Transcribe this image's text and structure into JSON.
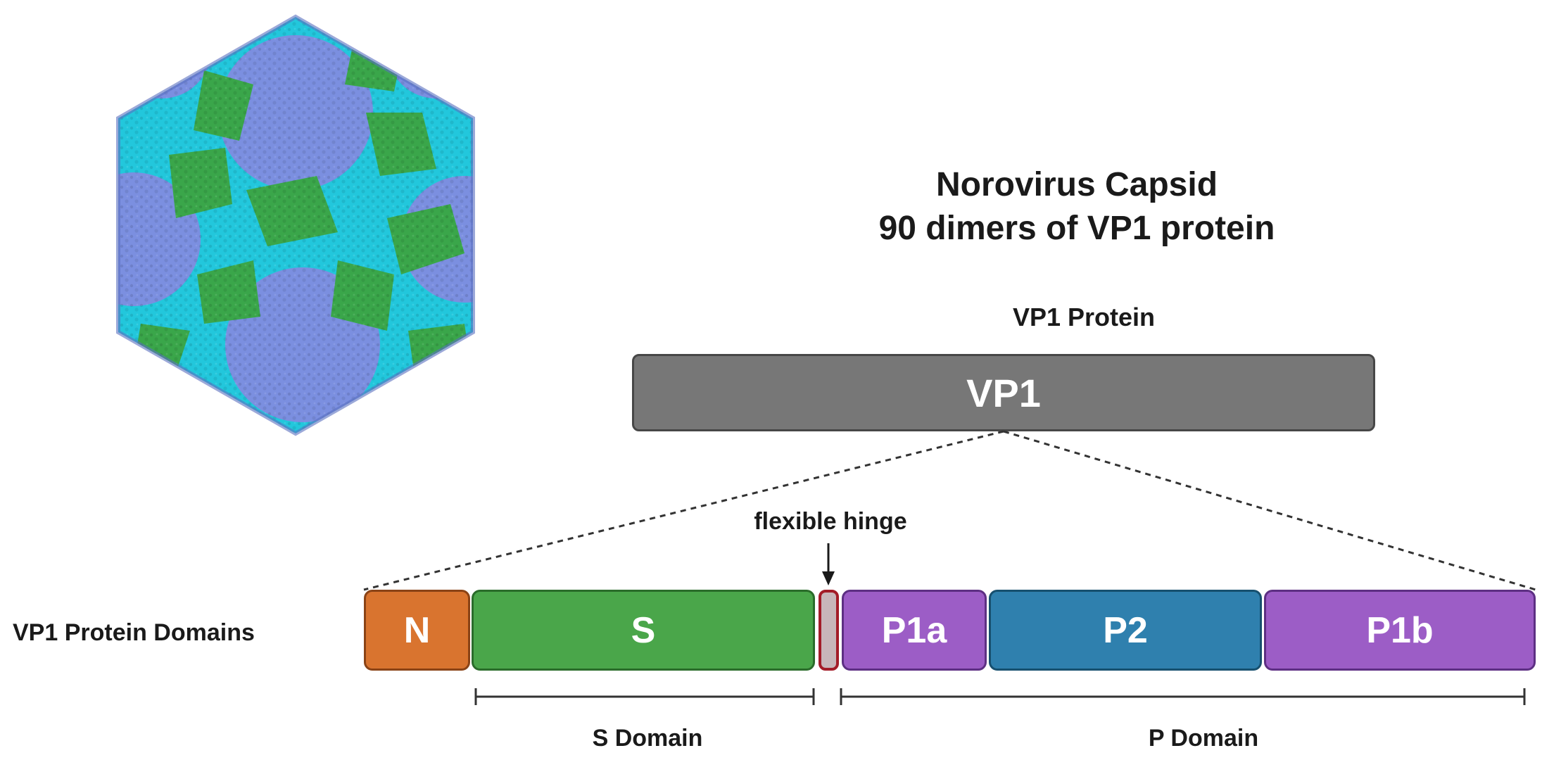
{
  "title": {
    "line1": "Norovirus Capsid",
    "line2": "90 dimers of VP1 protein"
  },
  "vp1_protein": {
    "caption": "VP1 Protein",
    "bar_label": "VP1"
  },
  "domains": {
    "row_label": "VP1 Protein Domains",
    "hinge_label": "flexible hinge",
    "segments": [
      {
        "label": "N",
        "color": "#d9742f"
      },
      {
        "label": "S",
        "color": "#4aa64a"
      },
      {
        "label": "",
        "color": "#c8b6ba"
      },
      {
        "label": "P1a",
        "color": "#9c5dc6"
      },
      {
        "label": "P2",
        "color": "#2f80ae"
      },
      {
        "label": "P1b",
        "color": "#9c5dc6"
      }
    ],
    "s_domain_label": "S Domain",
    "p_domain_label": "P Domain"
  },
  "colors": {
    "capsid_blue": "#7b8fe0",
    "capsid_cyan": "#22c7dc",
    "capsid_green": "#3aa64a",
    "vp1_gray": "#777777"
  }
}
